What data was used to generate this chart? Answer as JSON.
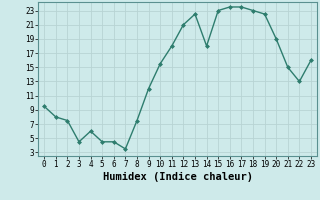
{
  "x": [
    0,
    1,
    2,
    3,
    4,
    5,
    6,
    7,
    8,
    9,
    10,
    11,
    12,
    13,
    14,
    15,
    16,
    17,
    18,
    19,
    20,
    21,
    22,
    23
  ],
  "y": [
    9.5,
    8.0,
    7.5,
    4.5,
    6.0,
    4.5,
    4.5,
    3.5,
    7.5,
    12.0,
    15.5,
    18.0,
    21.0,
    22.5,
    18.0,
    23.0,
    23.5,
    23.5,
    23.0,
    22.5,
    19.0,
    15.0,
    13.0,
    16.0
  ],
  "line_color": "#2e7d6e",
  "marker": "D",
  "marker_size": 2.0,
  "bg_color": "#ceeaea",
  "grid_color_major": "#b8d4d4",
  "grid_color_minor": "#cde3e3",
  "xlabel": "Humidex (Indice chaleur)",
  "xlabel_fontsize": 7.5,
  "yticks": [
    3,
    5,
    7,
    9,
    11,
    13,
    15,
    17,
    19,
    21,
    23
  ],
  "xticks": [
    0,
    1,
    2,
    3,
    4,
    5,
    6,
    7,
    8,
    9,
    10,
    11,
    12,
    13,
    14,
    15,
    16,
    17,
    18,
    19,
    20,
    21,
    22,
    23
  ],
  "ylim": [
    2.5,
    24.2
  ],
  "xlim": [
    -0.5,
    23.5
  ],
  "tick_fontsize": 5.5,
  "linewidth": 1.0
}
